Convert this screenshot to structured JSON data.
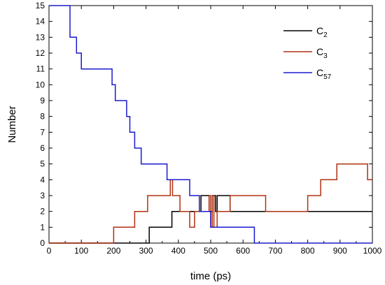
{
  "chart_data": {
    "type": "line",
    "step": true,
    "xlabel": "time (ps)",
    "ylabel": "Number",
    "xlim": [
      0,
      1000
    ],
    "ylim": [
      0,
      15
    ],
    "xticks": [
      "0",
      "100",
      "200",
      "300",
      "400",
      "500",
      "600",
      "700",
      "800",
      "900",
      "1000"
    ],
    "yticks": [
      "0",
      "1",
      "2",
      "3",
      "4",
      "5",
      "6",
      "7",
      "8",
      "9",
      "10",
      "11",
      "12",
      "13",
      "14",
      "15"
    ],
    "grid": false,
    "legend": "top-right",
    "series": [
      {
        "name": "C",
        "name_sub": "2",
        "color": "#000000",
        "points": [
          [
            0,
            0
          ],
          [
            310,
            0
          ],
          [
            310,
            1
          ],
          [
            380,
            1
          ],
          [
            380,
            2
          ],
          [
            470,
            2
          ],
          [
            470,
            3
          ],
          [
            495,
            3
          ],
          [
            495,
            2
          ],
          [
            505,
            2
          ],
          [
            505,
            3
          ],
          [
            515,
            3
          ],
          [
            515,
            2
          ],
          [
            520,
            2
          ],
          [
            520,
            3
          ],
          [
            560,
            3
          ],
          [
            560,
            2
          ],
          [
            1000,
            2
          ]
        ]
      },
      {
        "name": "C",
        "name_sub": "3",
        "color": "#b03010",
        "points": [
          [
            0,
            0
          ],
          [
            200,
            0
          ],
          [
            200,
            1
          ],
          [
            265,
            1
          ],
          [
            265,
            2
          ],
          [
            305,
            2
          ],
          [
            305,
            3
          ],
          [
            375,
            3
          ],
          [
            375,
            4
          ],
          [
            382,
            4
          ],
          [
            382,
            3
          ],
          [
            405,
            3
          ],
          [
            405,
            2
          ],
          [
            435,
            2
          ],
          [
            435,
            1
          ],
          [
            450,
            1
          ],
          [
            450,
            2
          ],
          [
            495,
            2
          ],
          [
            495,
            3
          ],
          [
            500,
            3
          ],
          [
            500,
            1
          ],
          [
            505,
            1
          ],
          [
            505,
            3
          ],
          [
            510,
            3
          ],
          [
            510,
            1
          ],
          [
            520,
            1
          ],
          [
            520,
            2
          ],
          [
            560,
            2
          ],
          [
            560,
            3
          ],
          [
            670,
            3
          ],
          [
            670,
            2
          ],
          [
            800,
            2
          ],
          [
            800,
            3
          ],
          [
            840,
            3
          ],
          [
            840,
            4
          ],
          [
            890,
            4
          ],
          [
            890,
            5
          ],
          [
            985,
            5
          ],
          [
            985,
            4
          ],
          [
            1000,
            4
          ]
        ]
      },
      {
        "name": "C",
        "name_sub": "57",
        "color": "#1a1acc",
        "points": [
          [
            0,
            15
          ],
          [
            65,
            15
          ],
          [
            65,
            13
          ],
          [
            85,
            13
          ],
          [
            85,
            12
          ],
          [
            100,
            12
          ],
          [
            100,
            11
          ],
          [
            195,
            11
          ],
          [
            195,
            10
          ],
          [
            205,
            10
          ],
          [
            205,
            9
          ],
          [
            240,
            9
          ],
          [
            240,
            8
          ],
          [
            250,
            8
          ],
          [
            250,
            7
          ],
          [
            265,
            7
          ],
          [
            265,
            6
          ],
          [
            285,
            6
          ],
          [
            285,
            5
          ],
          [
            365,
            5
          ],
          [
            365,
            4
          ],
          [
            435,
            4
          ],
          [
            435,
            3
          ],
          [
            465,
            3
          ],
          [
            465,
            2
          ],
          [
            500,
            2
          ],
          [
            500,
            1
          ],
          [
            635,
            1
          ],
          [
            635,
            0
          ],
          [
            1000,
            0
          ]
        ]
      }
    ]
  }
}
